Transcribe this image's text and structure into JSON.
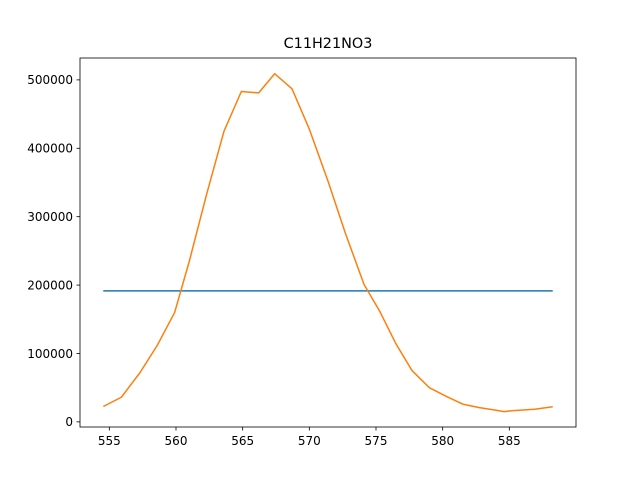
{
  "chart_data": {
    "type": "line",
    "title": "C11H21NO3",
    "xlabel": "",
    "ylabel": "",
    "xlim": [
      552.8,
      590.0
    ],
    "ylim": [
      -7500,
      532000
    ],
    "xticks": [
      555,
      560,
      565,
      570,
      575,
      580,
      585
    ],
    "xtick_labels": [
      "555",
      "560",
      "565",
      "570",
      "575",
      "580",
      "585"
    ],
    "yticks": [
      0,
      100000,
      200000,
      300000,
      400000,
      500000
    ],
    "ytick_labels": [
      "0",
      "100000",
      "200000",
      "300000",
      "400000",
      "500000"
    ],
    "grid": false,
    "legend": "none",
    "series": [
      {
        "color": "#1f77b4",
        "x": [
          554.6,
          588.2
        ],
        "y": [
          191500,
          191500
        ]
      },
      {
        "color": "#ff7f0e",
        "x": [
          554.6,
          555.9,
          557.3,
          558.6,
          559.9,
          561.0,
          562.3,
          563.6,
          564.9,
          566.2,
          567.4,
          568.7,
          570.0,
          571.4,
          572.7,
          574.1,
          575.3,
          576.5,
          577.7,
          579.0,
          580.3,
          581.5,
          582.7,
          584.0,
          584.6,
          585.3,
          586.9,
          588.2
        ],
        "y": [
          23000,
          36000,
          72000,
          112000,
          160000,
          235000,
          333000,
          425000,
          483000,
          481000,
          509000,
          487000,
          428000,
          352000,
          276000,
          201000,
          161000,
          114000,
          75000,
          50000,
          37000,
          26000,
          21000,
          17000,
          15000,
          16500,
          18500,
          22000
        ]
      }
    ]
  }
}
